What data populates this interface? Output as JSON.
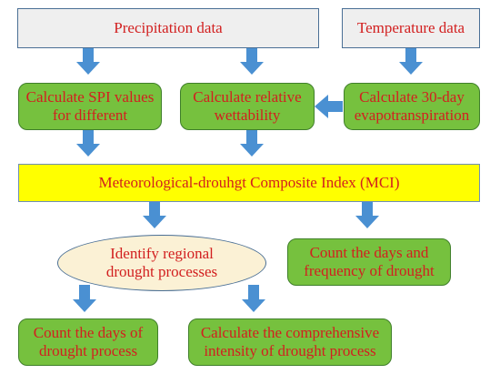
{
  "nodes": {
    "precipitation": "Precipitation data",
    "temperature": "Temperature data",
    "spi": "Calculate SPI values for different",
    "wettability": "Calculate relative wettability",
    "evapo": "Calculate 30-day evapotranspiration",
    "mci": "Meteorological-drouhgt Composite Index (MCI)",
    "identify": "Identify regional drought processes",
    "count_freq": "Count the days and frequency of drought",
    "count_process": "Count the days of drought process",
    "intensity": "Calculate the comprehensive intensity of drought process"
  },
  "colors": {
    "text": "#d21f1f",
    "arrow": "#4a90d2",
    "green": "#76c13e",
    "yellow": "#ffff00",
    "gray": "#efefef",
    "ellipse": "#fbf1d5"
  }
}
